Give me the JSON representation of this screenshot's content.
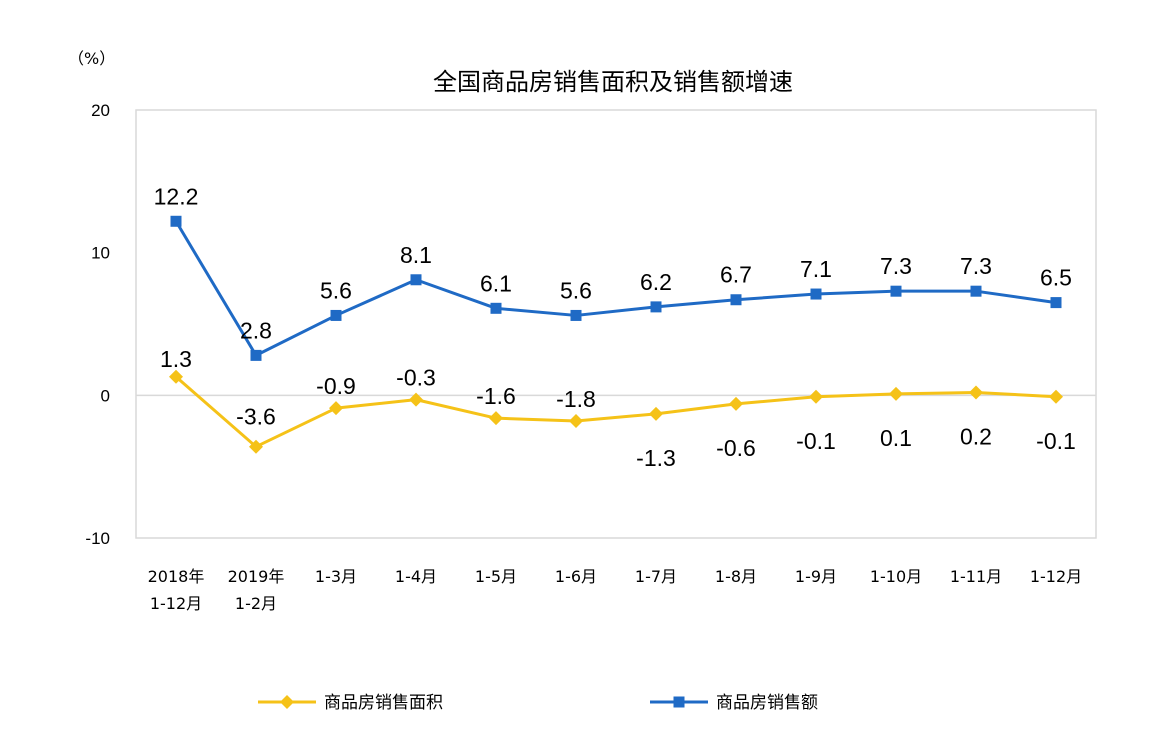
{
  "chart_data": {
    "type": "line",
    "title": "全国商品房销售面积及销售额增速",
    "unit_label": "（%）",
    "categories": [
      [
        "2018年",
        "1-12月"
      ],
      [
        "2019年",
        "1-2月"
      ],
      [
        "1-3月"
      ],
      [
        "1-4月"
      ],
      [
        "1-5月"
      ],
      [
        "1-6月"
      ],
      [
        "1-7月"
      ],
      [
        "1-8月"
      ],
      [
        "1-9月"
      ],
      [
        "1-10月"
      ],
      [
        "1-11月"
      ],
      [
        "1-12月"
      ]
    ],
    "ylim": [
      -10,
      20
    ],
    "yticks": [
      -10,
      0,
      10,
      20
    ],
    "grid": false,
    "legend_position": "bottom",
    "series": [
      {
        "name": "商品房销售面积",
        "color": "#f5c218",
        "marker": "diamond",
        "values": [
          1.3,
          -3.6,
          -0.9,
          -0.3,
          -1.6,
          -1.8,
          -1.3,
          -0.6,
          -0.1,
          0.1,
          0.2,
          -0.1
        ],
        "labels": [
          "1.3",
          "-3.6",
          "-0.9",
          "-0.3",
          "-1.6",
          "-1.8",
          "-1.3",
          "-0.6",
          "-0.1",
          "0.1",
          "0.2",
          "-0.1"
        ]
      },
      {
        "name": "商品房销售额",
        "color": "#1f6ac5",
        "marker": "square",
        "values": [
          12.2,
          2.8,
          5.6,
          8.1,
          6.1,
          5.6,
          6.2,
          6.7,
          7.1,
          7.3,
          7.3,
          6.5
        ],
        "labels": [
          "12.2",
          "2.8",
          "5.6",
          "8.1",
          "6.1",
          "5.6",
          "6.2",
          "6.7",
          "7.1",
          "7.3",
          "7.3",
          "6.5"
        ]
      }
    ]
  }
}
